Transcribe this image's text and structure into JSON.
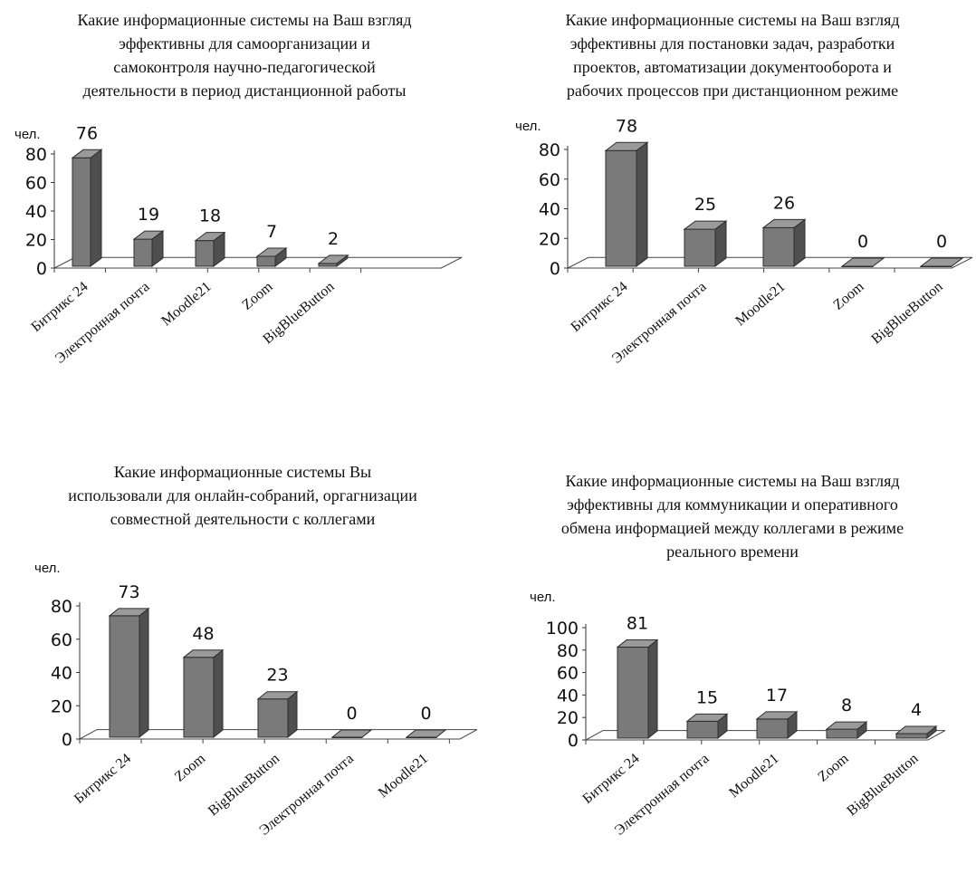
{
  "chart_data": [
    {
      "type": "bar",
      "title": "Какие информационные системы на Ваш взгляд эффективны для самоорганизации и самоконтроля научно-педагогической деятельности в период дистанционной работы",
      "title_lines": [
        "Какие информационные системы на Ваш взгляд",
        "эффективны для самоорганизации и",
        "самоконтроля научно-педагогической",
        "деятельности в период дистанционной работы"
      ],
      "ylabel": "чел.",
      "ylim": [
        0,
        80
      ],
      "yticks": [
        0,
        20,
        40,
        60,
        80
      ],
      "categories": [
        "Битрикс 24",
        "Электронная почта",
        "Moodle21",
        "Zoom",
        "BigBlueButton"
      ],
      "values": [
        76,
        19,
        18,
        7,
        2
      ],
      "bar_color": "#7a7a7a"
    },
    {
      "type": "bar",
      "title": "Какие информационные системы на Ваш взгляд эффективны для постановки задач, разработки проектов, автоматизации документооборота и рабочих процессов при дистанционном режиме",
      "title_lines": [
        "Какие информационные системы на Ваш взгляд",
        "эффективны для постановки задач, разработки",
        "проектов, автоматизации документооборота и",
        "рабочих процессов при дистанционном режиме"
      ],
      "ylabel": "чел.",
      "ylim": [
        0,
        80
      ],
      "yticks": [
        0,
        20,
        40,
        60,
        80
      ],
      "categories": [
        "Битрикс 24",
        "Электронная почта",
        "Moodle21",
        "Zoom",
        "BigBlueButton"
      ],
      "values": [
        78,
        25,
        26,
        0,
        0
      ],
      "bar_color": "#7a7a7a"
    },
    {
      "type": "bar",
      "title": "Какие информационные системы Вы использовали для онлайн-собраний, оргагнизации совместной деятельности с коллегами",
      "title_lines": [
        "Какие информационные системы Вы",
        "использовали для онлайн-собраний, оргагнизации",
        "совместной деятельности с коллегами"
      ],
      "ylabel": "чел.",
      "ylim": [
        0,
        80
      ],
      "yticks": [
        0,
        20,
        40,
        60,
        80
      ],
      "categories": [
        "Битрикс 24",
        "Zoom",
        "BigBlueButton",
        "Электронная почта",
        "Moodle21"
      ],
      "values": [
        73,
        48,
        23,
        0,
        0
      ],
      "bar_color": "#7a7a7a"
    },
    {
      "type": "bar",
      "title": "Какие информационные системы на Ваш взгляд эффективны для коммуникации и оперативного обмена информацией между коллегами в режиме реального времени",
      "title_lines": [
        "Какие информационные системы на Ваш взгляд",
        "эффективны для коммуникации и оперативного",
        "обмена информацией между коллегами в режиме",
        "реального времени"
      ],
      "ylabel": "чел.",
      "ylim": [
        0,
        100
      ],
      "yticks": [
        0,
        20,
        40,
        60,
        80,
        100
      ],
      "categories": [
        "Битрикс 24",
        "Электронная почта",
        "Moodle21",
        "Zoom",
        "BigBlueButton"
      ],
      "values": [
        81,
        15,
        17,
        8,
        4
      ],
      "bar_color": "#7a7a7a"
    }
  ]
}
